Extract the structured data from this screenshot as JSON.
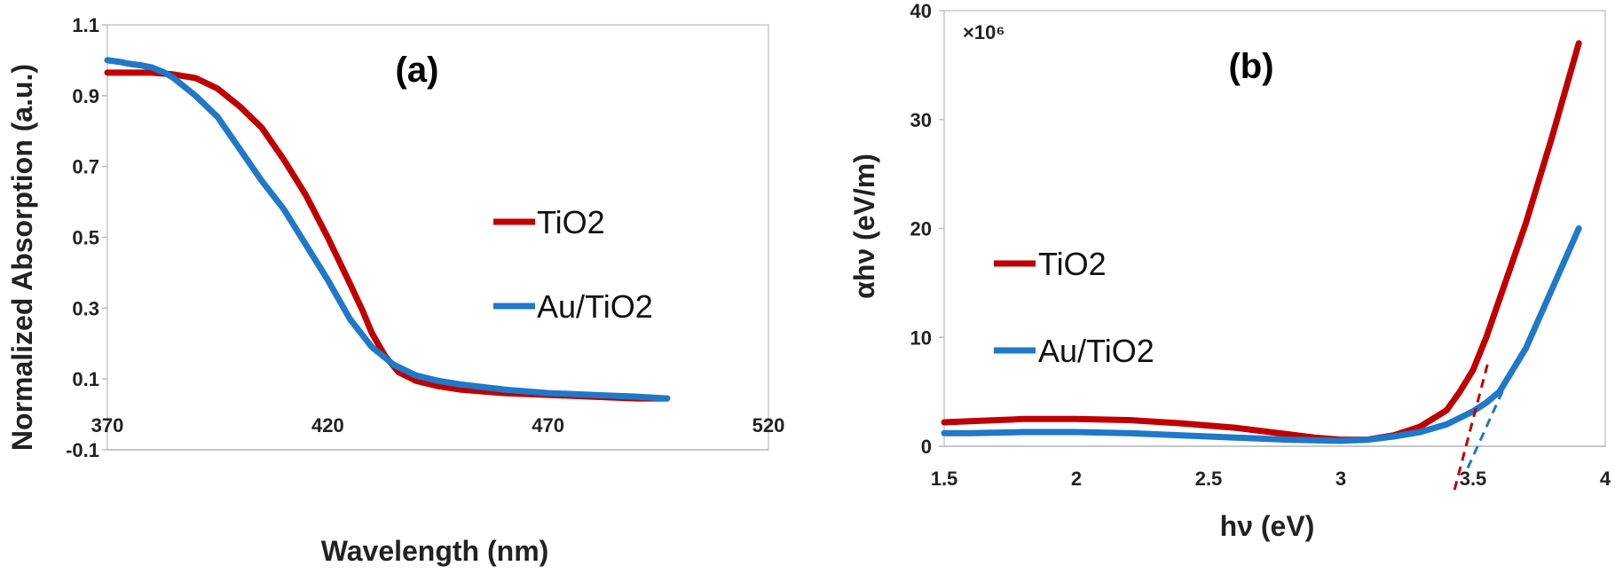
{
  "chart_data": [
    {
      "type": "line",
      "panel_label": "(a)",
      "xlabel": "Wavelength (nm)",
      "ylabel": "Normalized Absorption (a.u.)",
      "xlim": [
        370,
        520
      ],
      "ylim": [
        -0.1,
        1.1
      ],
      "xticks": [
        370,
        420,
        470,
        520
      ],
      "yticks": [
        -0.1,
        0.1,
        0.3,
        0.5,
        0.7,
        0.9,
        1.1
      ],
      "legend_position": "right",
      "colors": {
        "TiO2": "#c00000",
        "Au/TiO2": "#1f78c8"
      },
      "series": [
        {
          "name": "TiO2",
          "x": [
            370,
            375,
            380,
            385,
            390,
            395,
            400,
            405,
            410,
            415,
            420,
            425,
            428,
            430,
            433,
            436,
            440,
            445,
            450,
            460,
            470,
            480,
            490,
            497
          ],
          "y": [
            0.965,
            0.965,
            0.965,
            0.96,
            0.95,
            0.92,
            0.87,
            0.81,
            0.72,
            0.62,
            0.5,
            0.37,
            0.29,
            0.23,
            0.165,
            0.12,
            0.095,
            0.08,
            0.07,
            0.06,
            0.055,
            0.05,
            0.045,
            0.045
          ]
        },
        {
          "name": "Au/TiO2",
          "x": [
            370,
            373,
            375,
            378,
            380,
            383,
            385,
            390,
            395,
            400,
            405,
            410,
            415,
            420,
            425,
            430,
            435,
            440,
            445,
            450,
            460,
            470,
            480,
            490,
            497
          ],
          "y": [
            1.0,
            0.995,
            0.99,
            0.985,
            0.98,
            0.965,
            0.95,
            0.9,
            0.84,
            0.75,
            0.66,
            0.58,
            0.48,
            0.38,
            0.27,
            0.19,
            0.14,
            0.11,
            0.095,
            0.085,
            0.07,
            0.06,
            0.055,
            0.05,
            0.045
          ]
        }
      ]
    },
    {
      "type": "line",
      "panel_label": "(b)",
      "xlabel": "hν (eV)",
      "ylabel": "αhν (eV/m)",
      "multiplier": "×10⁶",
      "xlim": [
        1.5,
        4
      ],
      "ylim": [
        0,
        40
      ],
      "xticks": [
        1.5,
        2,
        2.5,
        3,
        3.5,
        4
      ],
      "yticks": [
        0,
        10,
        20,
        30,
        40
      ],
      "legend_position": "left",
      "colors": {
        "TiO2": "#c00000",
        "Au/TiO2": "#1f78c8"
      },
      "series": [
        {
          "name": "TiO2",
          "x": [
            1.5,
            1.6,
            1.8,
            2.0,
            2.2,
            2.4,
            2.6,
            2.8,
            2.9,
            3.0,
            3.1,
            3.2,
            3.3,
            3.4,
            3.45,
            3.5,
            3.55,
            3.6,
            3.7,
            3.8,
            3.9
          ],
          "y": [
            2.2,
            2.3,
            2.5,
            2.5,
            2.4,
            2.1,
            1.7,
            1.1,
            0.8,
            0.6,
            0.6,
            1.0,
            1.8,
            3.3,
            5.0,
            7.0,
            10.0,
            13.5,
            20.5,
            28.5,
            37.0
          ]
        },
        {
          "name": "Au/TiO2",
          "x": [
            1.5,
            1.6,
            1.8,
            2.0,
            2.2,
            2.4,
            2.6,
            2.8,
            3.0,
            3.1,
            3.2,
            3.3,
            3.4,
            3.5,
            3.55,
            3.6,
            3.7,
            3.8,
            3.9
          ],
          "y": [
            1.2,
            1.2,
            1.3,
            1.3,
            1.2,
            1.0,
            0.8,
            0.6,
            0.5,
            0.6,
            0.9,
            1.3,
            2.0,
            3.2,
            4.0,
            5.0,
            9.0,
            14.5,
            20.0
          ]
        }
      ],
      "tangent_lines": [
        {
          "series": "TiO2",
          "x": [
            3.43,
            3.56
          ],
          "y": [
            -4,
            8
          ]
        },
        {
          "series": "Au/TiO2",
          "x": [
            3.48,
            3.62
          ],
          "y": [
            -2,
            5.5
          ]
        }
      ]
    }
  ]
}
